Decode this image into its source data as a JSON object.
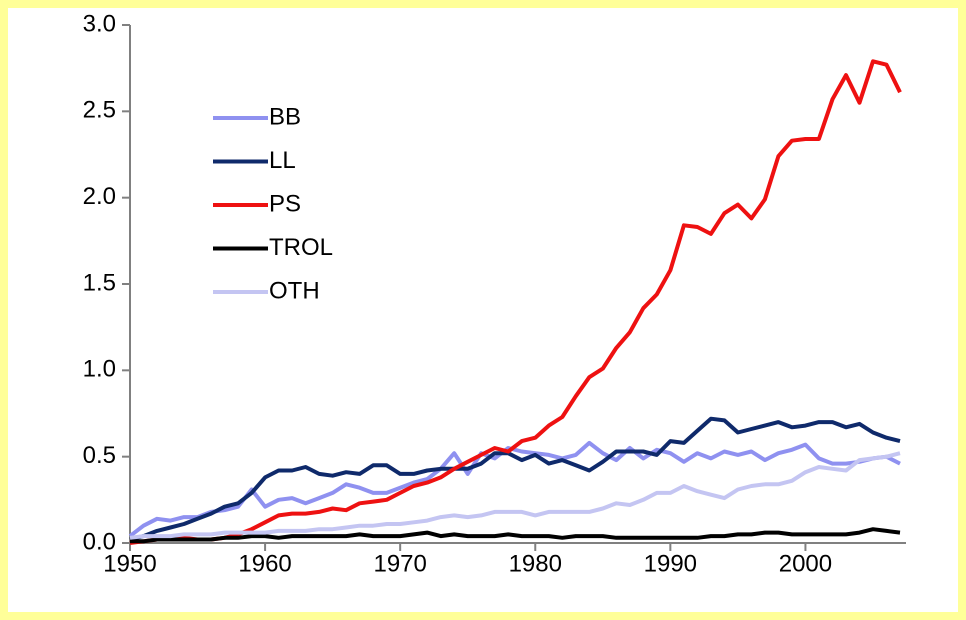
{
  "chart_data": {
    "type": "line",
    "x": [
      1950,
      1951,
      1952,
      1953,
      1954,
      1955,
      1956,
      1957,
      1958,
      1959,
      1960,
      1961,
      1962,
      1963,
      1964,
      1965,
      1966,
      1967,
      1968,
      1969,
      1970,
      1971,
      1972,
      1973,
      1974,
      1975,
      1976,
      1977,
      1978,
      1979,
      1980,
      1981,
      1982,
      1983,
      1984,
      1985,
      1986,
      1987,
      1988,
      1989,
      1990,
      1991,
      1992,
      1993,
      1994,
      1995,
      1996,
      1997,
      1998,
      1999,
      2000,
      2001,
      2002,
      2003,
      2004,
      2005,
      2006,
      2007
    ],
    "series": [
      {
        "name": "BB",
        "color": "#8f91f0",
        "values": [
          0.04,
          0.1,
          0.14,
          0.13,
          0.15,
          0.15,
          0.18,
          0.19,
          0.21,
          0.31,
          0.21,
          0.25,
          0.26,
          0.23,
          0.26,
          0.29,
          0.34,
          0.32,
          0.29,
          0.29,
          0.32,
          0.35,
          0.37,
          0.43,
          0.52,
          0.4,
          0.52,
          0.49,
          0.55,
          0.53,
          0.52,
          0.51,
          0.49,
          0.51,
          0.58,
          0.52,
          0.48,
          0.55,
          0.49,
          0.54,
          0.52,
          0.47,
          0.52,
          0.49,
          0.53,
          0.51,
          0.53,
          0.48,
          0.52,
          0.54,
          0.57,
          0.49,
          0.46,
          0.46,
          0.47,
          0.49,
          0.5,
          0.46
        ]
      },
      {
        "name": "LL",
        "color": "#0f2a6b",
        "values": [
          0.02,
          0.04,
          0.07,
          0.09,
          0.11,
          0.14,
          0.17,
          0.21,
          0.23,
          0.29,
          0.38,
          0.42,
          0.42,
          0.44,
          0.4,
          0.39,
          0.41,
          0.4,
          0.45,
          0.45,
          0.4,
          0.4,
          0.42,
          0.43,
          0.43,
          0.43,
          0.46,
          0.52,
          0.52,
          0.48,
          0.51,
          0.46,
          0.48,
          0.45,
          0.42,
          0.47,
          0.53,
          0.53,
          0.53,
          0.51,
          0.59,
          0.58,
          0.65,
          0.72,
          0.71,
          0.64,
          0.66,
          0.68,
          0.7,
          0.67,
          0.68,
          0.7,
          0.7,
          0.67,
          0.69,
          0.64,
          0.61,
          0.59
        ]
      },
      {
        "name": "PS",
        "color": "#ee1111",
        "values": [
          0.0,
          0.01,
          0.02,
          0.02,
          0.03,
          0.02,
          0.02,
          0.03,
          0.05,
          0.08,
          0.12,
          0.16,
          0.17,
          0.17,
          0.18,
          0.2,
          0.19,
          0.23,
          0.24,
          0.25,
          0.29,
          0.33,
          0.35,
          0.38,
          0.43,
          0.47,
          0.51,
          0.55,
          0.53,
          0.59,
          0.61,
          0.68,
          0.73,
          0.85,
          0.96,
          1.01,
          1.13,
          1.22,
          1.36,
          1.44,
          1.58,
          1.84,
          1.83,
          1.79,
          1.91,
          1.96,
          1.88,
          1.99,
          2.24,
          2.33,
          2.34,
          2.34,
          2.57,
          2.71,
          2.55,
          2.79,
          2.77,
          2.61
        ]
      },
      {
        "name": "TROL",
        "color": "#000000",
        "values": [
          0.01,
          0.01,
          0.02,
          0.02,
          0.02,
          0.02,
          0.02,
          0.03,
          0.03,
          0.04,
          0.04,
          0.03,
          0.04,
          0.04,
          0.04,
          0.04,
          0.04,
          0.05,
          0.04,
          0.04,
          0.04,
          0.05,
          0.06,
          0.04,
          0.05,
          0.04,
          0.04,
          0.04,
          0.05,
          0.04,
          0.04,
          0.04,
          0.03,
          0.04,
          0.04,
          0.04,
          0.03,
          0.03,
          0.03,
          0.03,
          0.03,
          0.03,
          0.03,
          0.04,
          0.04,
          0.05,
          0.05,
          0.06,
          0.06,
          0.05,
          0.05,
          0.05,
          0.05,
          0.05,
          0.06,
          0.08,
          0.07,
          0.06
        ]
      },
      {
        "name": "OTH",
        "color": "#c4c5f2",
        "values": [
          0.03,
          0.04,
          0.04,
          0.04,
          0.05,
          0.05,
          0.05,
          0.06,
          0.06,
          0.06,
          0.06,
          0.07,
          0.07,
          0.07,
          0.08,
          0.08,
          0.09,
          0.1,
          0.1,
          0.11,
          0.11,
          0.12,
          0.13,
          0.15,
          0.16,
          0.15,
          0.16,
          0.18,
          0.18,
          0.18,
          0.16,
          0.18,
          0.18,
          0.18,
          0.18,
          0.2,
          0.23,
          0.22,
          0.25,
          0.29,
          0.29,
          0.33,
          0.3,
          0.28,
          0.26,
          0.31,
          0.33,
          0.34,
          0.34,
          0.36,
          0.41,
          0.44,
          0.43,
          0.42,
          0.48,
          0.49,
          0.5,
          0.52
        ]
      }
    ],
    "xlim": [
      1950,
      2007
    ],
    "xticks": [
      1950,
      1960,
      1970,
      1980,
      1990,
      2000
    ],
    "ylim": [
      0,
      3
    ],
    "yticks": [
      {
        "value": 0,
        "label": "0.0"
      },
      0.5,
      {
        "value": 1,
        "label": "1.0"
      },
      1.5,
      {
        "value": 2,
        "label": "2.0"
      },
      2.5,
      {
        "value": 3,
        "label": "3.0"
      }
    ],
    "legend": "upper left"
  }
}
